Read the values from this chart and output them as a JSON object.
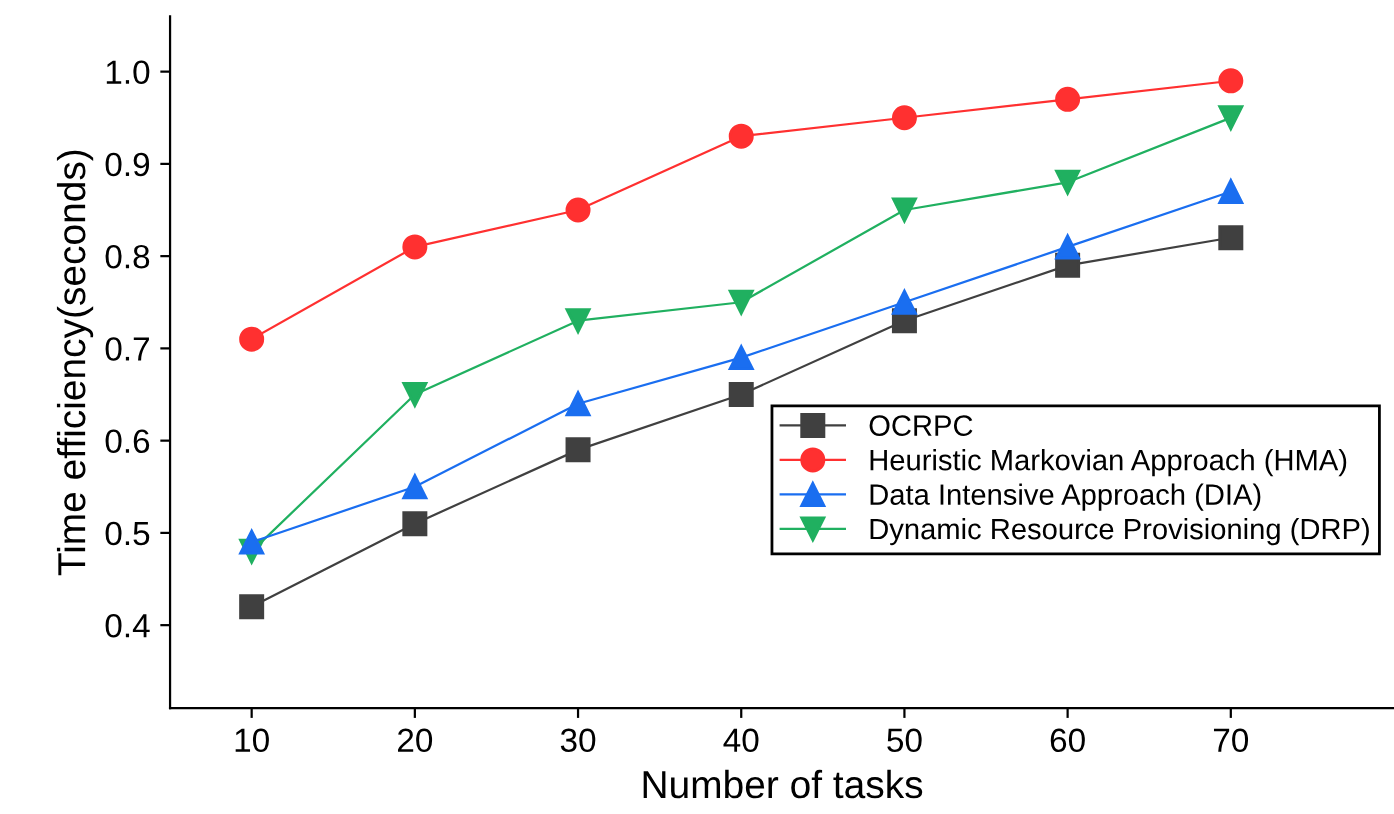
{
  "chart_data": {
    "type": "line",
    "xlabel": "Number of tasks",
    "ylabel": "Time efficiency(seconds)",
    "x": [
      10,
      20,
      30,
      40,
      50,
      60,
      70
    ],
    "series": [
      {
        "name": "OCRPC",
        "color": "#404040",
        "marker": "square",
        "values": [
          0.42,
          0.51,
          0.59,
          0.65,
          0.73,
          0.79,
          0.82
        ]
      },
      {
        "name": "Heuristic Markovian Approach (HMA)",
        "color": "#ff3030",
        "marker": "circle",
        "values": [
          0.71,
          0.81,
          0.85,
          0.93,
          0.95,
          0.97,
          0.99
        ]
      },
      {
        "name": "Data Intensive Approach (DIA)",
        "color": "#1a6ef0",
        "marker": "triangle",
        "values": [
          0.49,
          0.55,
          0.64,
          0.69,
          0.75,
          0.81,
          0.87
        ]
      },
      {
        "name": "Dynamic Resource Provisioning (DRP)",
        "color": "#20b060",
        "marker": "triangle_down",
        "values": [
          0.48,
          0.65,
          0.73,
          0.75,
          0.85,
          0.88,
          0.95
        ]
      }
    ],
    "xlim": [
      5,
      80
    ],
    "ylim": [
      0.31,
      1.06
    ],
    "xticks": [
      10,
      20,
      30,
      40,
      50,
      60,
      70
    ],
    "yticks": [
      {
        "value": 0.4,
        "label": "0.4"
      },
      {
        "value": 0.5,
        "label": "0.5"
      },
      {
        "value": 0.6,
        "label": "0.6"
      },
      {
        "value": 0.7,
        "label": "0.7"
      },
      {
        "value": 0.8,
        "label": "0.8"
      },
      {
        "value": 0.9,
        "label": "0.9"
      },
      {
        "value": 1.0,
        "label": "1.0"
      }
    ],
    "grid": false,
    "legend": "center right",
    "line_style": "solid"
  }
}
